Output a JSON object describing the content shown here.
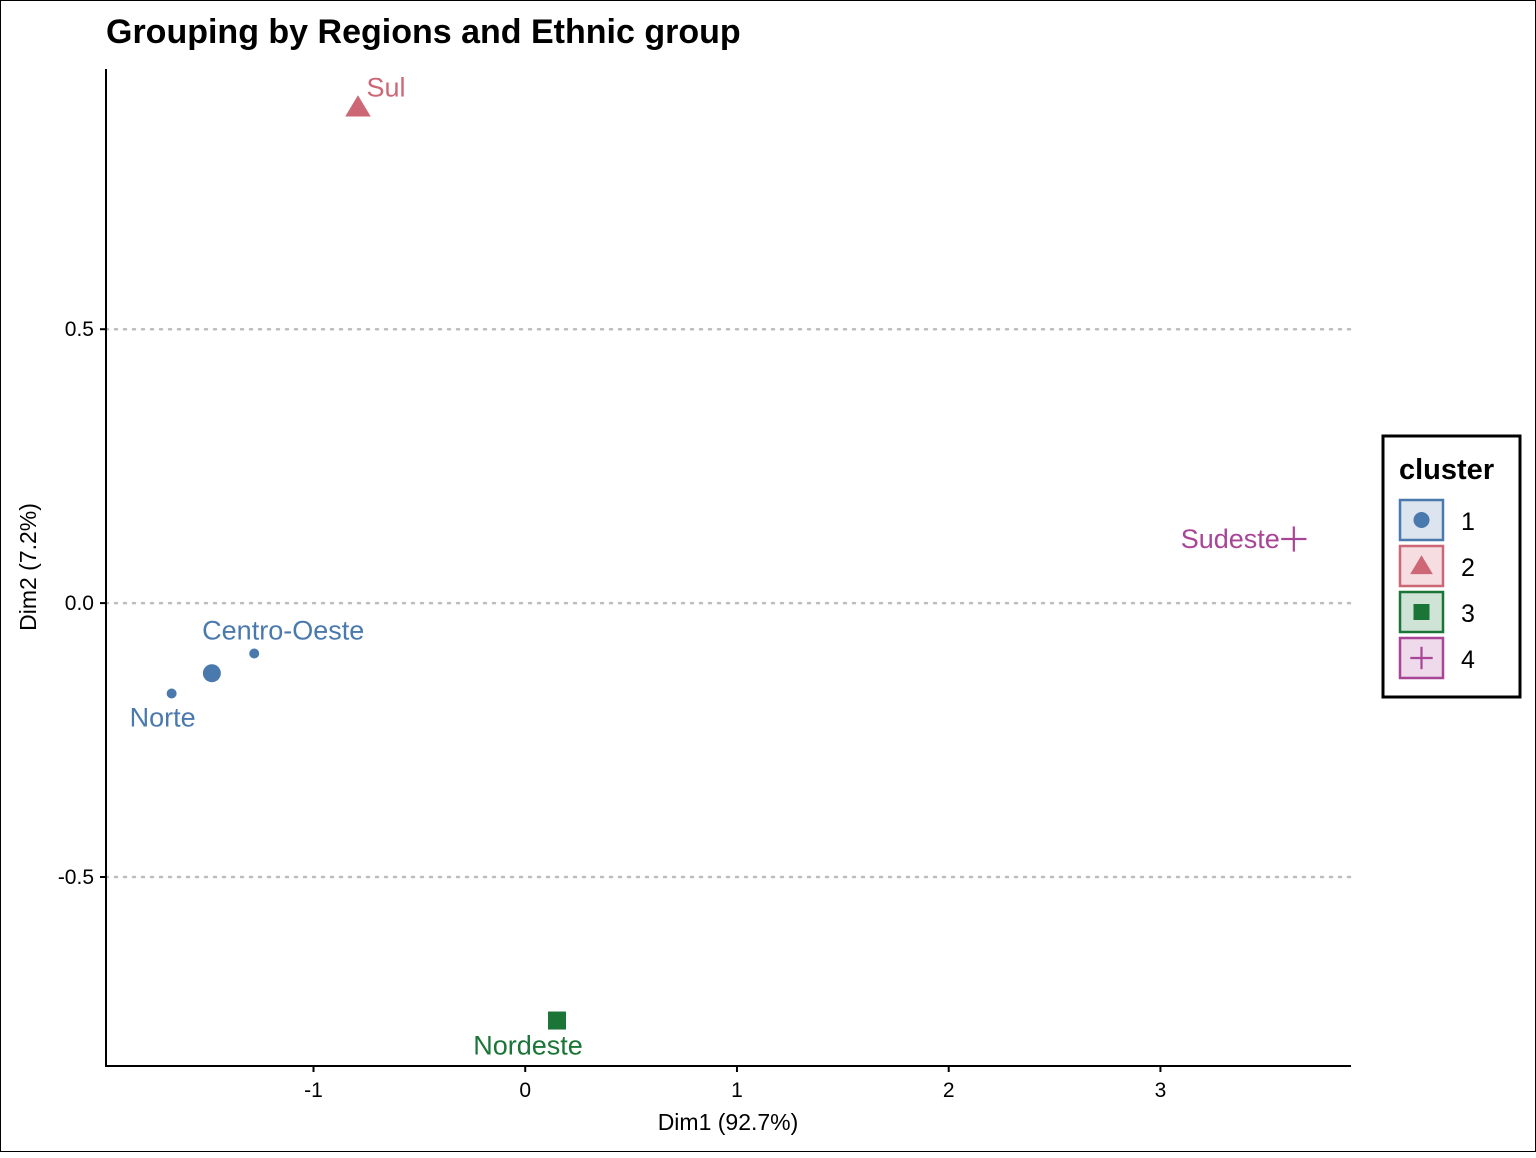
{
  "chart_data": {
    "type": "scatter",
    "title": "Grouping by Regions and Ethnic group",
    "xlabel": "Dim1 (92.7%)",
    "ylabel": "Dim2 (7.2%)",
    "xlim": [
      -1.98,
      3.9
    ],
    "ylim": [
      -0.845,
      0.975
    ],
    "x_ticks": [
      -1,
      0,
      1,
      2,
      3
    ],
    "x_tick_labels": [
      "-1",
      "0",
      "1",
      "2",
      "3"
    ],
    "y_ticks": [
      -0.5,
      0.0,
      0.5
    ],
    "y_tick_labels": [
      "-0.5",
      "0.0",
      "0.5"
    ],
    "grid": "horizontal dotted lines at y = -0.5, 0.0, 0.5",
    "legend": {
      "title": "cluster",
      "position": "right",
      "entries": [
        {
          "label": "1",
          "shape": "circle",
          "color": "#4a79ad"
        },
        {
          "label": "2",
          "shape": "triangle",
          "color": "#cd6776"
        },
        {
          "label": "3",
          "shape": "square",
          "color": "#1a7536"
        },
        {
          "label": "4",
          "shape": "cross",
          "color": "#a84597"
        }
      ]
    },
    "points": [
      {
        "label": "Norte",
        "x": -1.67,
        "y": -0.165,
        "cluster": "1",
        "size": "small"
      },
      {
        "label": "Centro-Oeste",
        "x": -1.28,
        "y": -0.092,
        "cluster": "1",
        "size": "small"
      },
      {
        "label": "",
        "x": -1.48,
        "y": -0.128,
        "cluster": "1",
        "size": "large",
        "note": "cluster centre"
      },
      {
        "label": "Sul",
        "x": -0.79,
        "y": 0.905,
        "cluster": "2",
        "size": "large"
      },
      {
        "label": "Nordeste",
        "x": 0.15,
        "y": -0.762,
        "cluster": "3",
        "size": "large"
      },
      {
        "label": "Sudeste",
        "x": 3.63,
        "y": 0.117,
        "cluster": "4",
        "size": "large"
      }
    ]
  }
}
